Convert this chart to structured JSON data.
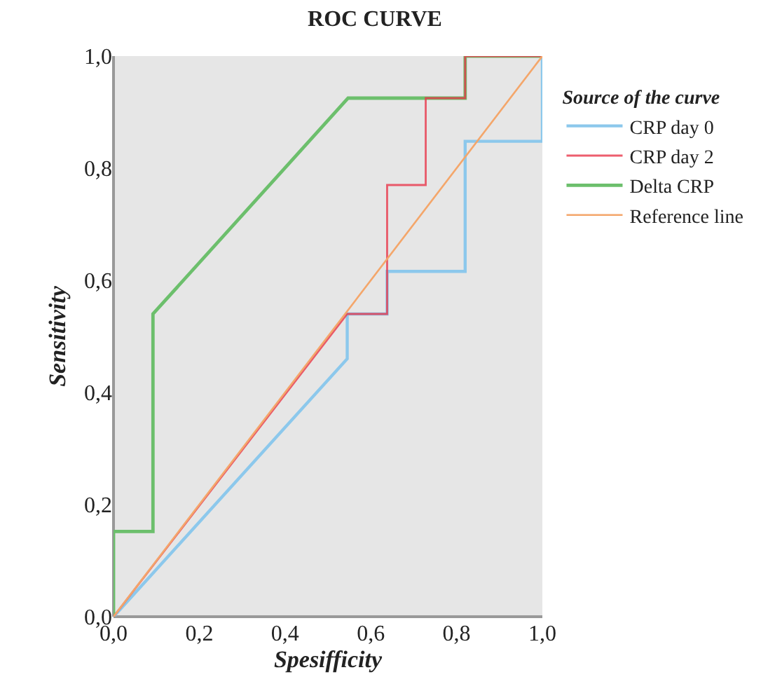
{
  "chart_data": {
    "type": "line",
    "title": "ROC CURVE",
    "xlabel": "Spesifficity",
    "ylabel": "Sensitivity",
    "legend_title": "Source of the curve",
    "xlim": [
      0,
      1
    ],
    "ylim": [
      0,
      1
    ],
    "xticks": [
      {
        "value": 0,
        "label": "0,0"
      },
      {
        "value": 0.2,
        "label": "0,2"
      },
      {
        "value": 0.4,
        "label": "0,4"
      },
      {
        "value": 0.6,
        "label": "0,6"
      },
      {
        "value": 0.8,
        "label": "0,8"
      },
      {
        "value": 1,
        "label": "1,0"
      }
    ],
    "yticks": [
      {
        "value": 0,
        "label": "0,0"
      },
      {
        "value": 0.2,
        "label": "0,2"
      },
      {
        "value": 0.4,
        "label": "0,4"
      },
      {
        "value": 0.6,
        "label": "0,6"
      },
      {
        "value": 0.8,
        "label": "0,8"
      },
      {
        "value": 1,
        "label": "1,0"
      }
    ],
    "grid": false,
    "legend": "right",
    "marker": "none",
    "line_style": "solid",
    "series": [
      {
        "name": "CRP day 0",
        "color": "#8cc8ec",
        "x": [
          0,
          0.545,
          0.545,
          0.638,
          0.638,
          0.82,
          0.82,
          1,
          1
        ],
        "values": [
          0,
          0.46,
          0.54,
          0.54,
          0.616,
          0.616,
          0.848,
          0.848,
          1
        ]
      },
      {
        "name": "CRP day 2",
        "color": "#e8364a",
        "x": [
          0,
          0.545,
          0.638,
          0.638,
          0.728,
          0.728,
          0.82,
          0.82,
          1
        ],
        "values": [
          0,
          0.54,
          0.54,
          0.77,
          0.77,
          0.925,
          0.925,
          1,
          1
        ]
      },
      {
        "name": "Delta CRP",
        "color": "#6cbf6c",
        "x": [
          0,
          0,
          0.092,
          0.092,
          0.547,
          0.82,
          0.82,
          1
        ],
        "values": [
          0,
          0.152,
          0.152,
          0.54,
          0.925,
          0.925,
          1,
          1
        ]
      },
      {
        "name": "Reference line",
        "color": "#f4a66a",
        "x": [
          0,
          1
        ],
        "values": [
          0,
          1
        ]
      }
    ]
  }
}
